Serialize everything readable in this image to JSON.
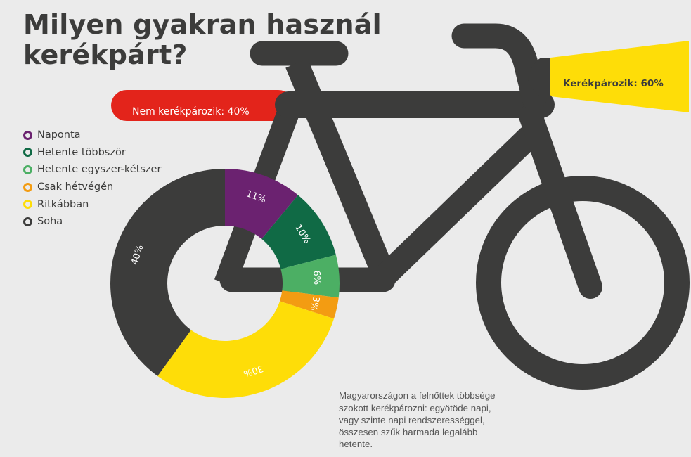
{
  "title": "Milyen gyakran használ kerékpárt?",
  "bars": {
    "no_cycling": {
      "label": "Nem kerékpározik: 40%",
      "color": "#e3241b"
    },
    "cycling": {
      "label": "Kerékpározik: 60%",
      "color": "#fedd08"
    }
  },
  "legend": [
    {
      "label": "Naponta",
      "color": "#6b2270"
    },
    {
      "label": "Hetente többször",
      "color": "#106a45"
    },
    {
      "label": "Hetente egyszer-kétszer",
      "color": "#4caf64"
    },
    {
      "label": "Csak hétvégén",
      "color": "#f39c12"
    },
    {
      "label": "Ritkábban",
      "color": "#fedd08"
    },
    {
      "label": "Soha",
      "color": "#3c3c3b"
    }
  ],
  "note": "Magyarországon a felnőttek többsége szokott kerékpározni: egyötöde napi, vagy szinte napi rendszerességgel, összesen szűk harmada legalább hetente.",
  "colors": {
    "background": "#ebebeb",
    "bike": "#3c3c3b",
    "text": "#3c3c3b"
  },
  "chart_data": [
    {
      "type": "pie",
      "title": "Milyen gyakran használ kerékpárt?",
      "variant": "donut",
      "categories": [
        "Naponta",
        "Hetente többször",
        "Hetente egyszer-kétszer",
        "Csak hétvégén",
        "Ritkábban",
        "Soha"
      ],
      "values": [
        11,
        10,
        6,
        3,
        30,
        40
      ],
      "labels": [
        "11%",
        "10%",
        "6%",
        "3%",
        "30%",
        "40%"
      ],
      "colors": [
        "#6b2270",
        "#106a45",
        "#4caf64",
        "#f39c12",
        "#fedd08",
        "#3c3c3b"
      ],
      "unit": "%",
      "legend_position": "top-left"
    },
    {
      "type": "bar",
      "orientation": "horizontal",
      "categories": [
        "Nem kerékpározik",
        "Kerékpározik"
      ],
      "values": [
        40,
        60
      ],
      "labels": [
        "Nem kerékpározik: 40%",
        "Kerékpározik: 60%"
      ],
      "colors": [
        "#e3241b",
        "#fedd08"
      ],
      "unit": "%"
    }
  ]
}
